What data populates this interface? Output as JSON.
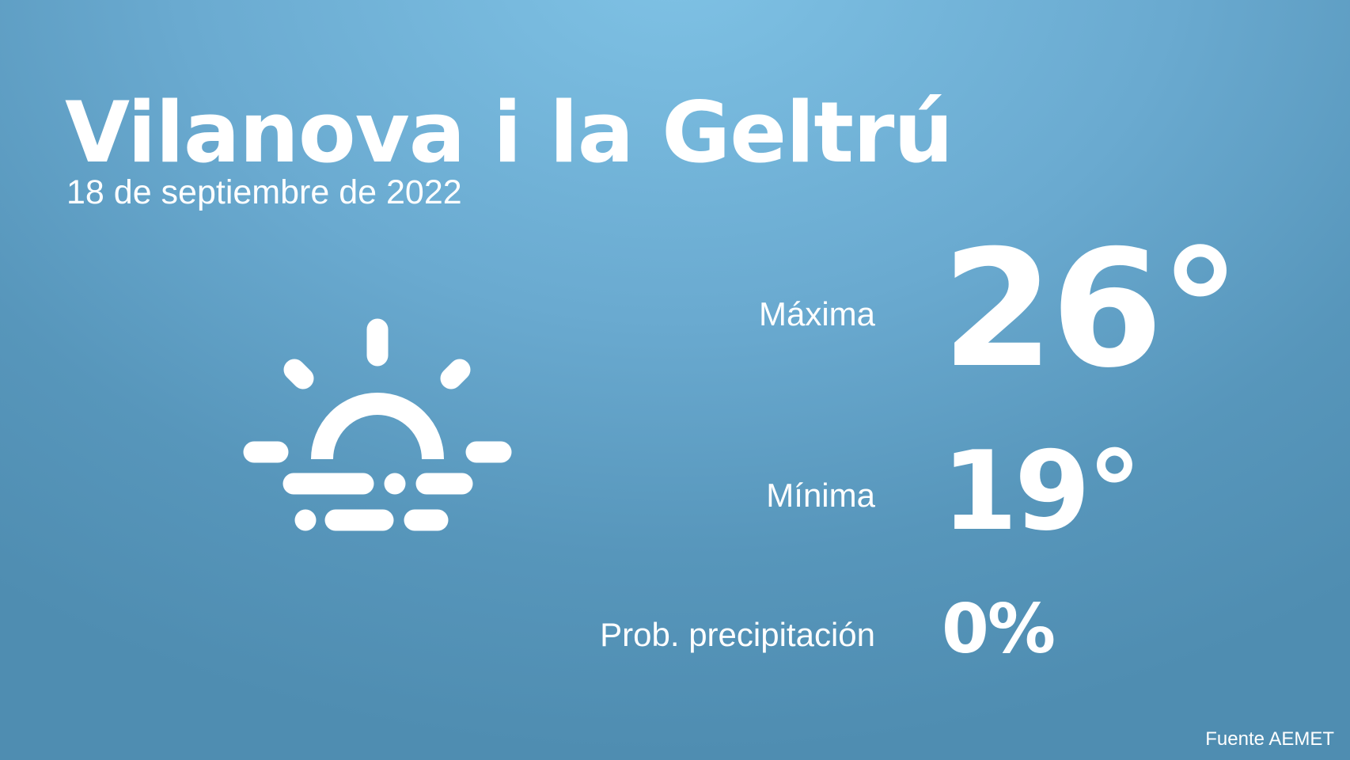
{
  "location": "Vilanova i la Geltrú",
  "date": "18 de septiembre de 2022",
  "weather_icon": "sun-rising-fog-icon",
  "max": {
    "label": "Máxima",
    "value": "26°"
  },
  "min": {
    "label": "Mínima",
    "value": "19°"
  },
  "precip": {
    "label": "Prob. precipitación",
    "value": "0%"
  },
  "source": "Fuente AEMET"
}
